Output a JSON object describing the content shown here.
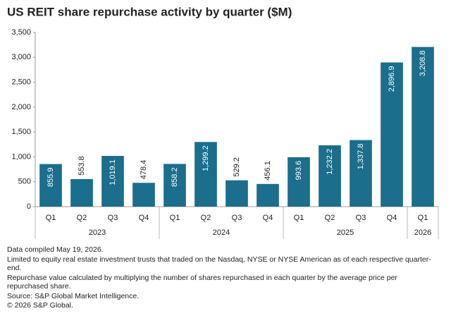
{
  "chart_data": {
    "type": "bar",
    "title": "US REIT share repurchase activity by quarter ($M)",
    "groups": [
      {
        "name": "2023",
        "categories": [
          "Q1",
          "Q2",
          "Q3",
          "Q4"
        ]
      },
      {
        "name": "2024",
        "categories": [
          "Q1",
          "Q2",
          "Q3",
          "Q4"
        ]
      },
      {
        "name": "2025",
        "categories": [
          "Q1",
          "Q2",
          "Q3",
          "Q4"
        ]
      },
      {
        "name": "2026",
        "categories": [
          "Q1"
        ]
      }
    ],
    "values": [
      855.9,
      553.8,
      1019.1,
      478.4,
      858.2,
      1299.2,
      529.2,
      456.1,
      993.6,
      1232.2,
      1337.8,
      2896.9,
      3208.8
    ],
    "value_labels": [
      "855.9",
      "553.8",
      "1,019.1",
      "478.4",
      "858.2",
      "1,299.2",
      "529.2",
      "456.1",
      "993.6",
      "1,232.2",
      "1,337.8",
      "2,896.9",
      "3,208.8"
    ],
    "color": "#1b6e8c",
    "ylim": [
      0,
      3500
    ],
    "yticks": [
      0,
      500,
      {
        "value": 1000,
        "label": "1,000"
      },
      {
        "value": 1500,
        "label": "1,500"
      },
      {
        "value": 2000,
        "label": "2,000"
      },
      {
        "value": 2500,
        "label": "2,500"
      },
      {
        "value": 3000,
        "label": "3,000"
      },
      {
        "value": 3500,
        "label": "3,500"
      }
    ],
    "grid": false,
    "notes": [
      "Data compiled May 19, 2026.",
      "Limited to equity real estate investment trusts that traded on the Nasdaq, NYSE or NYSE American as of each respective quarter-end.",
      "Repurchase value calculated by multiplying the number of shares repurchased in each quarter by the average price per repurchased share.",
      "Source: S&P Global Market Intelligence.",
      "© 2026 S&P Global."
    ]
  }
}
